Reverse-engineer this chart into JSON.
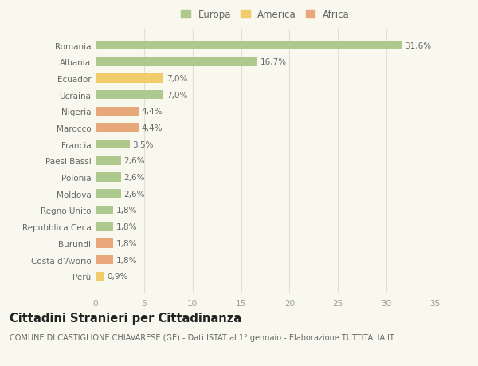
{
  "categories": [
    "Romania",
    "Albania",
    "Ecuador",
    "Ucraina",
    "Nigeria",
    "Marocco",
    "Francia",
    "Paesi Bassi",
    "Polonia",
    "Moldova",
    "Regno Unito",
    "Repubblica Ceca",
    "Burundi",
    "Costa d’Avorio",
    "Perù"
  ],
  "values": [
    31.6,
    16.7,
    7.0,
    7.0,
    4.4,
    4.4,
    3.5,
    2.6,
    2.6,
    2.6,
    1.8,
    1.8,
    1.8,
    1.8,
    0.9
  ],
  "labels": [
    "31,6%",
    "16,7%",
    "7,0%",
    "7,0%",
    "4,4%",
    "4,4%",
    "3,5%",
    "2,6%",
    "2,6%",
    "2,6%",
    "1,8%",
    "1,8%",
    "1,8%",
    "1,8%",
    "0,9%"
  ],
  "continent": [
    "Europa",
    "Europa",
    "America",
    "Europa",
    "Africa",
    "Africa",
    "Europa",
    "Europa",
    "Europa",
    "Europa",
    "Europa",
    "Europa",
    "Africa",
    "Africa",
    "America"
  ],
  "colors": {
    "Europa": "#adc98d",
    "America": "#f0cc6a",
    "Africa": "#e8a87a"
  },
  "legend_items": [
    "Europa",
    "America",
    "Africa"
  ],
  "xlim": [
    0,
    35
  ],
  "xticks": [
    0,
    5,
    10,
    15,
    20,
    25,
    30,
    35
  ],
  "title": "Cittadini Stranieri per Cittadinanza",
  "subtitle": "COMUNE DI CASTIGLIONE CHIAVARESE (GE) - Dati ISTAT al 1° gennaio - Elaborazione TUTTITALIA.IT",
  "background_color": "#f8f8ee",
  "grid_color": "#e0e0d0",
  "bar_height": 0.55,
  "title_fontsize": 10.5,
  "subtitle_fontsize": 7,
  "label_fontsize": 7.5,
  "tick_fontsize": 7.5,
  "legend_fontsize": 8.5
}
